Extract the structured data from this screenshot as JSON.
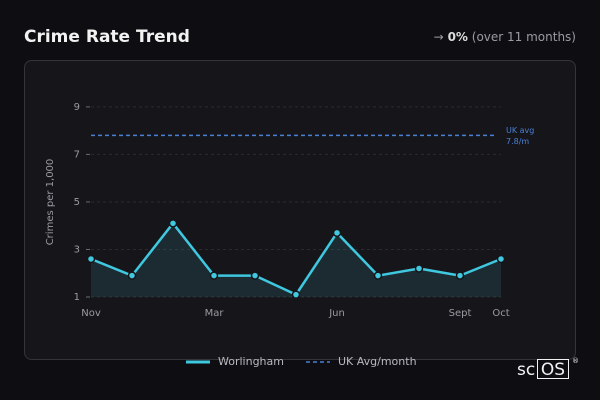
{
  "header": {
    "title": "Crime Rate Trend",
    "arrow": "→",
    "change": "0%",
    "period": "(over 11 months)"
  },
  "chart_data": {
    "type": "line",
    "y_label": "Crimes per 1,000",
    "categories": [
      "Nov",
      null,
      null,
      "Mar",
      null,
      null,
      "Jun",
      null,
      null,
      "Sept",
      "Oct"
    ],
    "series": [
      {
        "name": "Worlingham",
        "color": "#3fc8e0",
        "values": [
          2.6,
          1.9,
          4.1,
          1.9,
          1.9,
          1.1,
          3.7,
          1.9,
          2.2,
          1.9,
          2.6
        ]
      }
    ],
    "reference": {
      "name": "UK Avg/month",
      "label": "UK avg",
      "value": 7.8,
      "value_label": "7.8/m",
      "color": "#4a7fd6"
    },
    "ylim": [
      1,
      9.5
    ],
    "yticks": [
      1,
      3,
      5,
      7,
      9
    ],
    "grid": true
  },
  "logo": {
    "prefix": "sc",
    "boxed": "OS",
    "mark": "®"
  }
}
